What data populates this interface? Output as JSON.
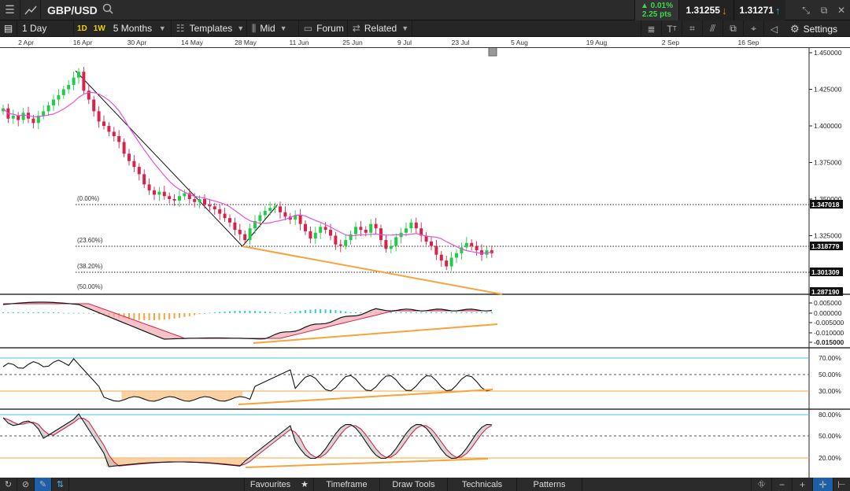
{
  "topbar": {
    "symbol": "GBP/USD",
    "change_pct": "▲ 0.01%",
    "change_pts": "2.25 pts",
    "sell_price": "1.31255",
    "buy_price": "1.31271"
  },
  "toolbar": {
    "interval": "1 Day",
    "tf_1d": "1D",
    "tf_1w": "1W",
    "range": "5 Months",
    "templates": "Templates",
    "price_type": "Mid",
    "forum": "Forum",
    "related": "Related",
    "settings": "Settings"
  },
  "date_axis": [
    "2 Apr",
    "16 Apr",
    "30 Apr",
    "14 May",
    "28 May",
    "11 Jun",
    "25 Jun",
    "9 Jul",
    "23 Jul",
    "5 Aug",
    "19 Aug",
    "2 Sep",
    "16 Sep"
  ],
  "price_axis": {
    "ticks": [
      "1.450000",
      "1.425000",
      "1.400000",
      "1.375000",
      "1.350000",
      "1.325000",
      "1.300000"
    ],
    "tags": [
      "1.347018",
      "1.318779",
      "1.301309",
      "1.287190"
    ]
  },
  "fib_labels": [
    "(0.00%)",
    "(23.60%)",
    "(38.20%)",
    "(50.00%)"
  ],
  "macd_axis": [
    "0.005000",
    "0.000000",
    "-0.005000",
    "-0.010000",
    "-0.015000"
  ],
  "rsi_axis": [
    "70.00%",
    "50.00%",
    "30.00%"
  ],
  "stoch_axis": [
    "80.00%",
    "50.00%",
    "20.00%"
  ],
  "colors": {
    "up": "#22cc4a",
    "down": "#d8224a",
    "ma": "#e055d6",
    "trend": "#f7a33b",
    "hist_pos": "#38c8e0",
    "hist_neg": "#f7a33b",
    "band": "#38c8e0"
  },
  "bottombar": {
    "favourites": "Favourites",
    "timeframe": "Timeframe",
    "draw_tools": "Draw Tools",
    "technicals": "Technicals",
    "patterns": "Patterns"
  }
}
